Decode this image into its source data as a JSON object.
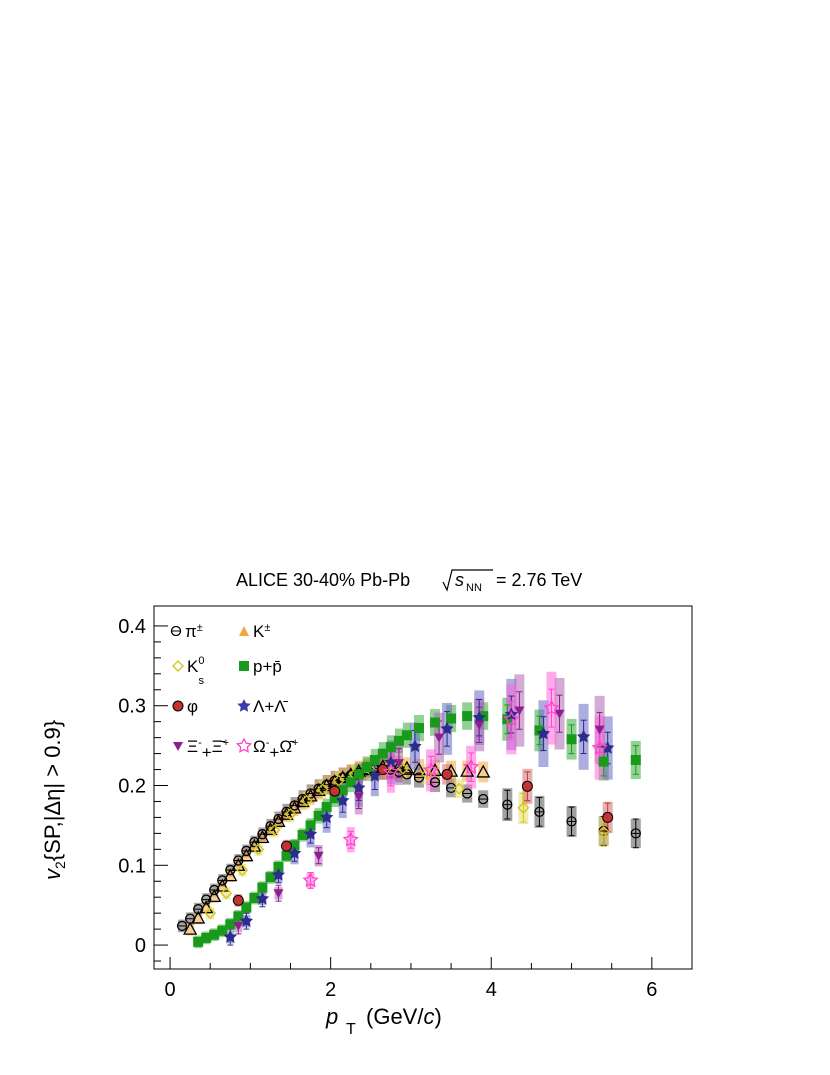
{
  "chart_data": {
    "type": "scatter",
    "title": "ALICE 30-40% Pb-Pb",
    "title_energy_symbol": "√s",
    "title_energy_subscript": "NN",
    "title_energy_value": "= 2.76 TeV",
    "xlabel": "p",
    "xlabel_sub": "T",
    "xlabel_unit": "(GeV/c)",
    "ylabel": "v₂{SP,|Δη| > 0.9}",
    "xlim": [
      -0.2,
      6.5
    ],
    "ylim": [
      -0.03,
      0.425
    ],
    "xticks": [
      "0",
      "2",
      "4",
      "6"
    ],
    "yticks": [
      "0",
      "0.1",
      "0.2",
      "0.3",
      "0.4"
    ],
    "xtick_values": [
      0,
      2,
      4,
      6
    ],
    "ytick_values": [
      0,
      0.1,
      0.2,
      0.3,
      0.4
    ],
    "legend_position": "top-left",
    "series": [
      {
        "name": "π±",
        "marker": "open-circle",
        "color": "#000000",
        "box_color": "#555555",
        "x": [
          0.15,
          0.25,
          0.35,
          0.45,
          0.55,
          0.65,
          0.75,
          0.85,
          0.95,
          1.05,
          1.15,
          1.25,
          1.35,
          1.45,
          1.55,
          1.65,
          1.75,
          1.85,
          1.95,
          2.05,
          2.15,
          2.25,
          2.35,
          2.45,
          2.55,
          2.65,
          2.75,
          2.85,
          2.95,
          3.1,
          3.3,
          3.5,
          3.7,
          3.9,
          4.2,
          4.6,
          5.0,
          5.4,
          5.8
        ],
        "y": [
          0.024,
          0.033,
          0.045,
          0.057,
          0.069,
          0.081,
          0.094,
          0.106,
          0.118,
          0.129,
          0.139,
          0.149,
          0.158,
          0.167,
          0.175,
          0.183,
          0.19,
          0.196,
          0.201,
          0.206,
          0.21,
          0.213,
          0.216,
          0.219,
          0.221,
          0.221,
          0.22,
          0.217,
          0.214,
          0.21,
          0.204,
          0.197,
          0.19,
          0.183,
          0.176,
          0.167,
          0.155,
          0.143,
          0.14
        ]
      },
      {
        "name": "K±",
        "marker": "open-triangle",
        "color": "#000000",
        "box_color": "#f4a540",
        "x": [
          0.25,
          0.35,
          0.45,
          0.55,
          0.65,
          0.75,
          0.85,
          0.95,
          1.05,
          1.15,
          1.25,
          1.35,
          1.45,
          1.55,
          1.65,
          1.75,
          1.85,
          1.95,
          2.05,
          2.15,
          2.25,
          2.35,
          2.45,
          2.55,
          2.65,
          2.75,
          2.85,
          2.95,
          3.1,
          3.3,
          3.5,
          3.7,
          3.9
        ],
        "y": [
          0.02,
          0.034,
          0.047,
          0.061,
          0.074,
          0.087,
          0.1,
          0.112,
          0.124,
          0.135,
          0.145,
          0.155,
          0.164,
          0.172,
          0.18,
          0.187,
          0.194,
          0.2,
          0.205,
          0.21,
          0.214,
          0.218,
          0.221,
          0.223,
          0.224,
          0.225,
          0.224,
          0.222,
          0.22,
          0.219,
          0.218,
          0.218,
          0.217
        ]
      },
      {
        "name": "K0s",
        "marker": "open-diamond",
        "color": "#d4c417",
        "box_color": "#e6dc6a",
        "x": [
          0.5,
          0.7,
          0.9,
          1.1,
          1.3,
          1.5,
          1.7,
          1.9,
          2.1,
          2.3,
          2.5,
          2.7,
          2.9,
          3.2,
          3.6,
          4.4,
          5.4
        ],
        "y": [
          0.04,
          0.065,
          0.094,
          0.12,
          0.144,
          0.164,
          0.181,
          0.195,
          0.206,
          0.214,
          0.219,
          0.222,
          0.221,
          0.214,
          0.196,
          0.172,
          0.142
        ]
      },
      {
        "name": "p+p̄",
        "marker": "filled-square",
        "color": "#1a9a1a",
        "box_color": "#3aaa3a",
        "x": [
          0.35,
          0.45,
          0.55,
          0.65,
          0.75,
          0.85,
          0.95,
          1.05,
          1.15,
          1.25,
          1.35,
          1.45,
          1.55,
          1.65,
          1.75,
          1.85,
          1.95,
          2.05,
          2.15,
          2.25,
          2.35,
          2.45,
          2.55,
          2.65,
          2.75,
          2.85,
          2.95,
          3.1,
          3.3,
          3.5,
          3.7,
          3.9,
          4.2,
          4.6,
          5.0,
          5.4,
          5.8
        ],
        "y": [
          0.004,
          0.009,
          0.013,
          0.018,
          0.026,
          0.036,
          0.047,
          0.059,
          0.072,
          0.085,
          0.098,
          0.112,
          0.125,
          0.138,
          0.15,
          0.162,
          0.173,
          0.184,
          0.194,
          0.204,
          0.214,
          0.223,
          0.232,
          0.24,
          0.248,
          0.256,
          0.263,
          0.272,
          0.279,
          0.284,
          0.287,
          0.287,
          0.283,
          0.269,
          0.258,
          0.23,
          0.232
        ]
      },
      {
        "name": "φ",
        "marker": "filled-circle",
        "color": "#c23333",
        "box_color": "#d07070",
        "x": [
          0.85,
          1.45,
          2.05,
          2.65,
          3.45,
          4.45,
          5.45
        ],
        "y": [
          0.056,
          0.124,
          0.193,
          0.22,
          0.214,
          0.199,
          0.16
        ]
      },
      {
        "name": "Λ+Λ̄",
        "marker": "filled-star",
        "color": "#2c2c8c",
        "box_color": "#6a6ac8",
        "x": [
          0.75,
          0.95,
          1.15,
          1.35,
          1.55,
          1.75,
          1.95,
          2.15,
          2.35,
          2.55,
          2.75,
          3.05,
          3.45,
          3.85,
          4.25,
          4.65,
          5.15,
          5.45
        ],
        "y": [
          0.01,
          0.03,
          0.058,
          0.088,
          0.115,
          0.139,
          0.16,
          0.181,
          0.197,
          0.212,
          0.229,
          0.249,
          0.271,
          0.285,
          0.289,
          0.265,
          0.261,
          0.247
        ]
      },
      {
        "name": "Ξ-+Ξ̄+",
        "marker": "filled-triangle-down",
        "color": "#8e1e8e",
        "box_color": "#b066b0",
        "x": [
          0.85,
          1.35,
          1.85,
          2.35,
          2.85,
          3.35,
          3.85,
          4.35,
          4.85,
          5.35
        ],
        "y": [
          0.024,
          0.065,
          0.112,
          0.186,
          0.228,
          0.26,
          0.276,
          0.294,
          0.29,
          0.27
        ]
      },
      {
        "name": "Ω-+Ω̄+",
        "marker": "open-star",
        "color": "#ff44cc",
        "box_color": "#ff66dd",
        "x": [
          1.75,
          2.25,
          2.75,
          3.25,
          3.75,
          4.25,
          4.75,
          5.35
        ],
        "y": [
          0.081,
          0.132,
          0.217,
          0.219,
          0.223,
          0.283,
          0.297,
          0.247
        ]
      }
    ]
  },
  "legend": {
    "items": [
      {
        "label": "π±",
        "series": 0
      },
      {
        "label": "K±",
        "series": 1
      },
      {
        "label": "K0s",
        "series": 2
      },
      {
        "label": "p+p̄",
        "series": 3
      },
      {
        "label": "φ",
        "series": 4
      },
      {
        "label": "Λ+Λ̄",
        "series": 5
      },
      {
        "label": "Ξ-+Ξ̄+",
        "series": 6
      },
      {
        "label": "Ω-+Ω̄+",
        "series": 7
      }
    ]
  }
}
